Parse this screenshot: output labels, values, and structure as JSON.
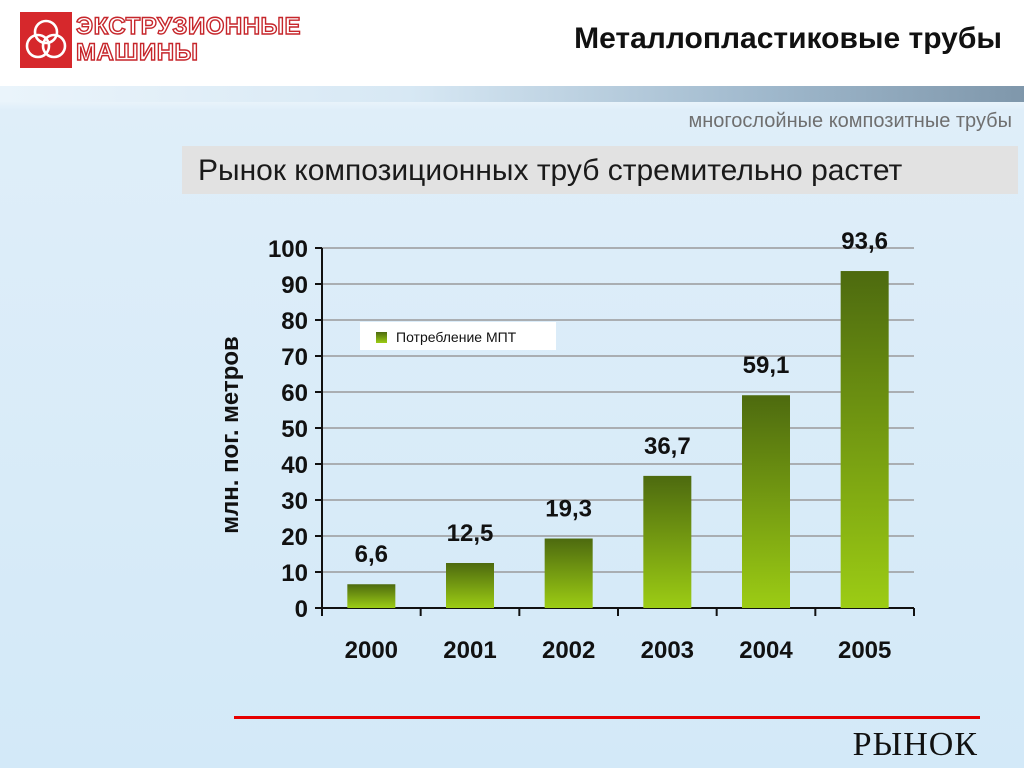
{
  "header": {
    "logo_text_line1": "ЭКСТРУЗИОННЫЕ",
    "logo_text_line2": "МАШИНЫ",
    "title": "Металлопластиковые трубы"
  },
  "subtitle": "многослойные композитные трубы",
  "headline": "Рынок композиционных труб стремительно растет",
  "footer": {
    "label": "РЫНОК"
  },
  "colors": {
    "accent_red": "#e60000",
    "logo_red": "#d6282c",
    "bar_dark": "#4d6a0f",
    "bar_light": "#9ccc14"
  },
  "chart_data": {
    "type": "bar",
    "categories": [
      "2000",
      "2001",
      "2002",
      "2003",
      "2004",
      "2005"
    ],
    "series": [
      {
        "name": "Потребление МПТ",
        "values": [
          6.6,
          12.5,
          19.3,
          36.7,
          59.1,
          93.6
        ]
      }
    ],
    "data_labels": [
      "6,6",
      "12,5",
      "19,3",
      "36,7",
      "59,1",
      "93,6"
    ],
    "y_ticks": [
      0,
      10,
      20,
      30,
      40,
      50,
      60,
      70,
      80,
      90,
      100
    ],
    "ylim": [
      0,
      100
    ],
    "ylabel": "млн. пог. метров",
    "xlabel": "",
    "grid": true,
    "legend_position": "top-left"
  }
}
